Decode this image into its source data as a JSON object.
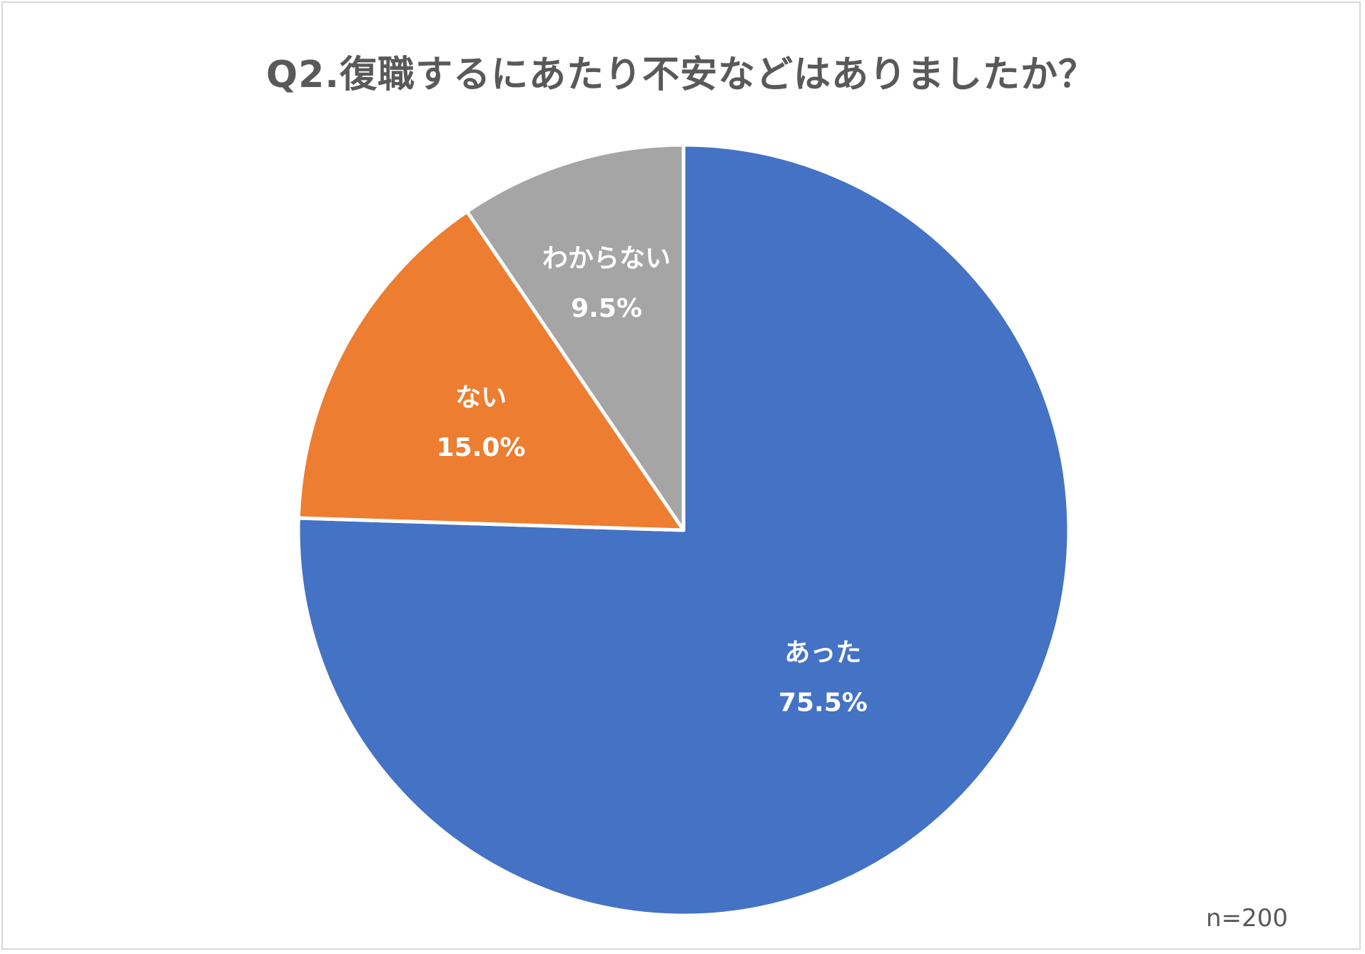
{
  "chart_data": {
    "type": "pie",
    "title": "Q2.復職するにあたり不安などはありましたか？",
    "note": "n=200",
    "slices": [
      {
        "label": "あった",
        "value": 75.5,
        "value_label": "75.5%",
        "color": "#4472C4"
      },
      {
        "label": "ない",
        "value": 15.0,
        "value_label": "15.0%",
        "color": "#ED7D31"
      },
      {
        "label": "わからない",
        "value": 9.5,
        "value_label": "9.5%",
        "color": "#A5A5A5"
      }
    ]
  }
}
